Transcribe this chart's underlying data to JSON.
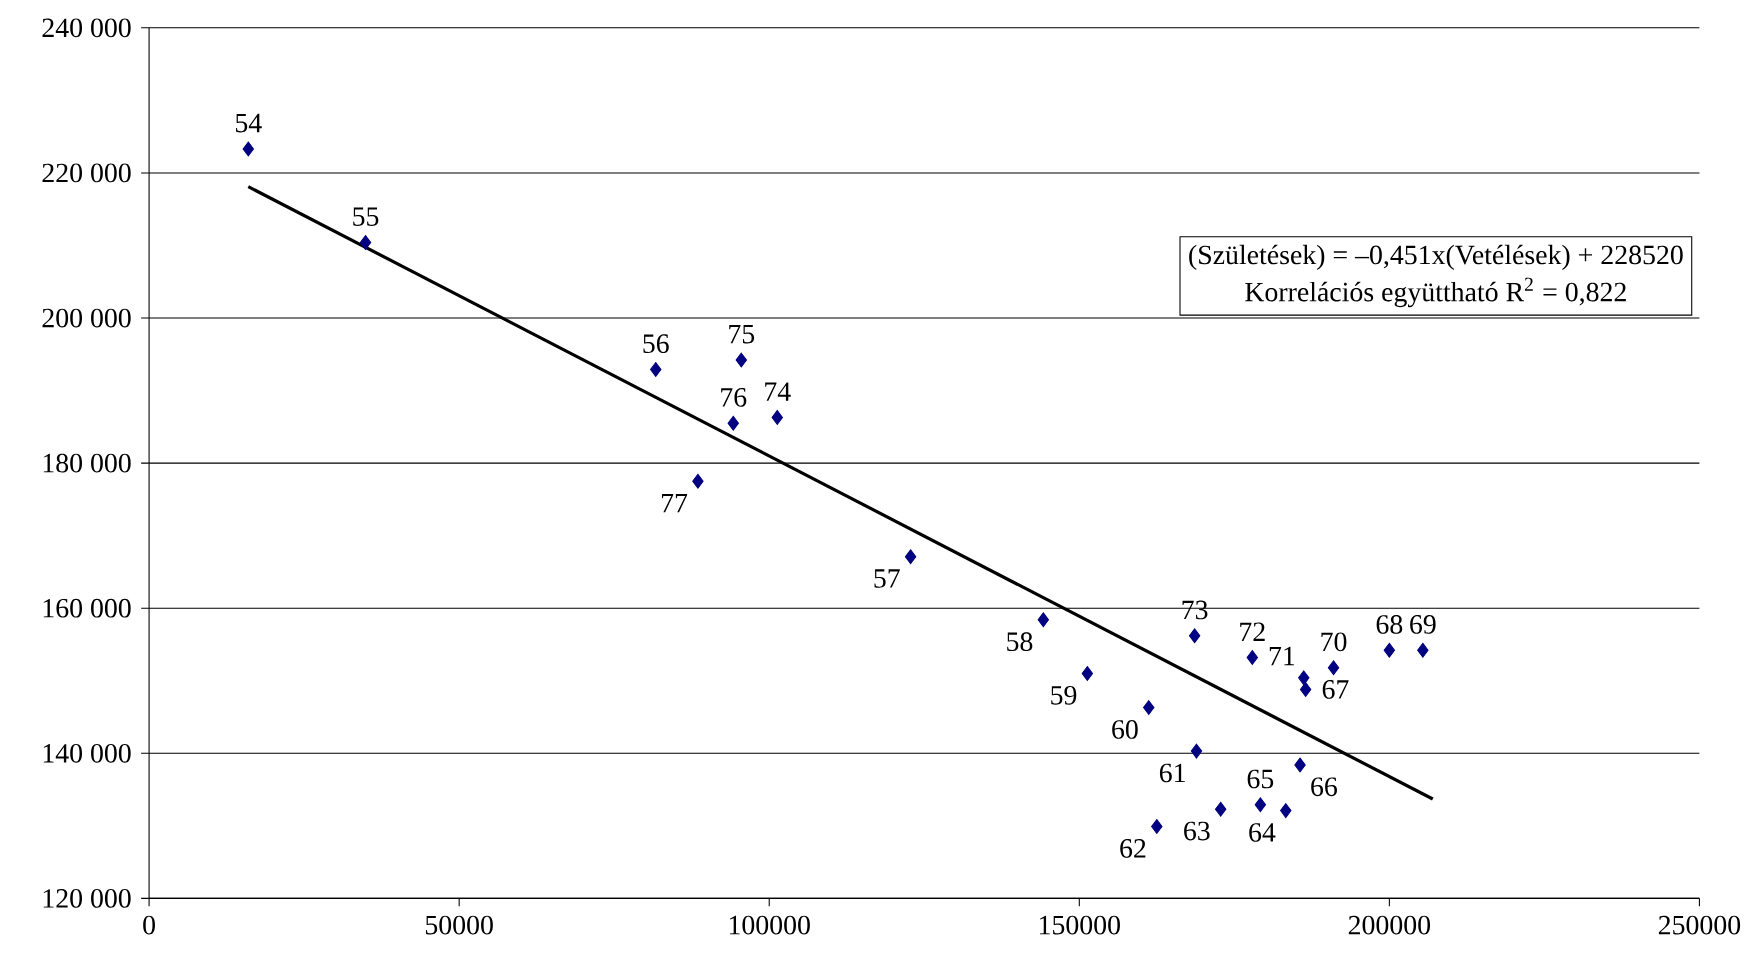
{
  "chart_data": {
    "type": "scatter",
    "xlim": [
      0,
      250000
    ],
    "xticks": [
      0,
      50000,
      100000,
      150000,
      200000,
      250000
    ],
    "ylim": [
      120000,
      240000
    ],
    "yticks": [
      {
        "value": 120000,
        "label": "120 000"
      },
      {
        "value": 140000,
        "label": "140 000"
      },
      {
        "value": 160000,
        "label": "160 000"
      },
      {
        "value": 180000,
        "label": "180 000"
      },
      {
        "value": 200000,
        "label": "200 000"
      },
      {
        "value": 220000,
        "label": "220 000"
      },
      {
        "value": 240000,
        "label": "240 000"
      }
    ],
    "grid": "y",
    "series": [
      {
        "marker": "diamond",
        "color": "#000080",
        "x": [
          16000,
          34900,
          81700,
          122800,
          144200,
          151300,
          161200,
          168900,
          162500,
          172800,
          183300,
          179200,
          185600,
          186500,
          200000,
          205400,
          191000,
          186200,
          177900,
          168600,
          101300,
          95500,
          94200,
          88500
        ],
        "values": [
          223300,
          210400,
          192900,
          167100,
          158400,
          151000,
          146300,
          140300,
          129900,
          132300,
          132100,
          132900,
          138400,
          148800,
          154200,
          154200,
          151800,
          150400,
          153200,
          156200,
          186300,
          194200,
          185500,
          177500
        ]
      },
      {
        "type": "line",
        "marker": "none",
        "color": "#000000",
        "x": [
          16000,
          207000
        ],
        "values": [
          218100,
          133700
        ]
      }
    ],
    "annotations": [
      "(Születések) = –0,451x(Vetélések) + 228520",
      "Korrelációs együttható R$^{2}$ = 0,822",
      {
        "text": "54",
        "x": 16000,
        "y": 223300
      },
      {
        "text": "55",
        "x": 34900,
        "y": 210400
      },
      {
        "text": "56",
        "x": 81700,
        "y": 192900
      },
      {
        "text": "57",
        "x": 122800,
        "y": 167100
      },
      {
        "text": "58",
        "x": 144200,
        "y": 158400
      },
      {
        "text": "59",
        "x": 151300,
        "y": 151000
      },
      {
        "text": "60",
        "x": 161200,
        "y": 146300
      },
      {
        "text": "61",
        "x": 168900,
        "y": 140300
      },
      {
        "text": "62",
        "x": 162500,
        "y": 129900
      },
      {
        "text": "63",
        "x": 172800,
        "y": 132300
      },
      {
        "text": "64",
        "x": 183300,
        "y": 132100
      },
      {
        "text": "65",
        "x": 179200,
        "y": 132900
      },
      {
        "text": "66",
        "x": 185600,
        "y": 138400
      },
      {
        "text": "67",
        "x": 186500,
        "y": 148800
      },
      {
        "text": "68",
        "x": 200000,
        "y": 154200
      },
      {
        "text": "69",
        "x": 205400,
        "y": 154200
      },
      {
        "text": "70",
        "x": 191000,
        "y": 151800
      },
      {
        "text": "71",
        "x": 186200,
        "y": 150400
      },
      {
        "text": "72",
        "x": 177900,
        "y": 153200
      },
      {
        "text": "73",
        "x": 168600,
        "y": 156200
      },
      {
        "text": "74",
        "x": 101300,
        "y": 186300
      },
      {
        "text": "75",
        "x": 95500,
        "y": 194200
      },
      {
        "text": "76",
        "x": 94200,
        "y": 185500
      },
      {
        "text": "77",
        "x": 88500,
        "y": 177500
      }
    ]
  }
}
